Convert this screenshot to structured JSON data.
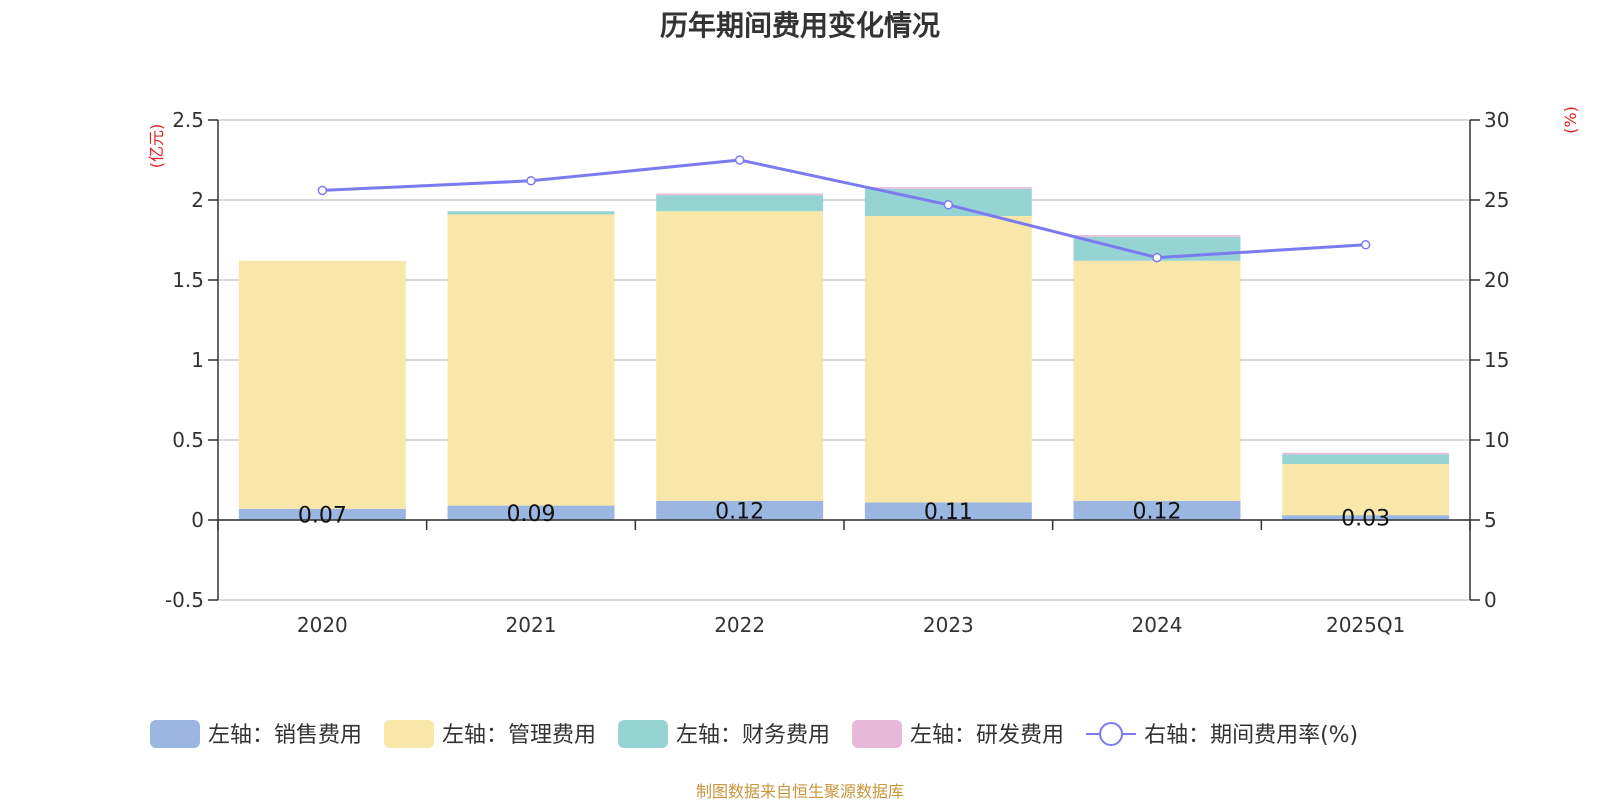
{
  "chart_data": {
    "type": "bar",
    "title": "历年期间费用变化情况",
    "categories": [
      "2020",
      "2021",
      "2022",
      "2023",
      "2024",
      "2025Q1"
    ],
    "stacked": true,
    "left_axis": {
      "unit": "(亿元)",
      "range": [
        -0.5,
        2.5
      ],
      "ticks": [
        "-0.5",
        "0",
        "0.5",
        "1",
        "1.5",
        "2",
        "2.5"
      ]
    },
    "right_axis": {
      "unit": "(%)",
      "range": [
        0,
        30
      ],
      "ticks": [
        "0",
        "5",
        "10",
        "15",
        "20",
        "25",
        "30"
      ]
    },
    "grid": true,
    "legend_position": "bottom",
    "series": [
      {
        "name": "左轴：销售费用",
        "axis": "left",
        "type": "bar",
        "color": "#9bb6e0",
        "values": [
          0.07,
          0.09,
          0.12,
          0.11,
          0.12,
          0.03
        ],
        "labels": [
          "0.07",
          "0.09",
          "0.12",
          "0.11",
          "0.12",
          "0.03"
        ]
      },
      {
        "name": "左轴：管理费用",
        "axis": "left",
        "type": "bar",
        "color": "#f8e7a8",
        "values": [
          1.55,
          1.82,
          1.81,
          1.79,
          1.5,
          0.32
        ]
      },
      {
        "name": "左轴：财务费用",
        "axis": "left",
        "type": "bar",
        "color": "#96d4d4",
        "values": [
          0.0,
          0.02,
          0.1,
          0.17,
          0.15,
          0.06
        ]
      },
      {
        "name": "左轴：研发费用",
        "axis": "left",
        "type": "bar",
        "color": "#e8b8d8",
        "values": [
          0.0,
          0.0,
          0.01,
          0.01,
          0.01,
          0.01
        ]
      },
      {
        "name": "右轴：期间费用率(%)",
        "axis": "right",
        "type": "line",
        "color": "#7b7bef",
        "values": [
          25.6,
          26.2,
          27.5,
          24.7,
          21.4,
          22.2
        ]
      }
    ]
  },
  "source_text": "制图数据来自恒生聚源数据库"
}
